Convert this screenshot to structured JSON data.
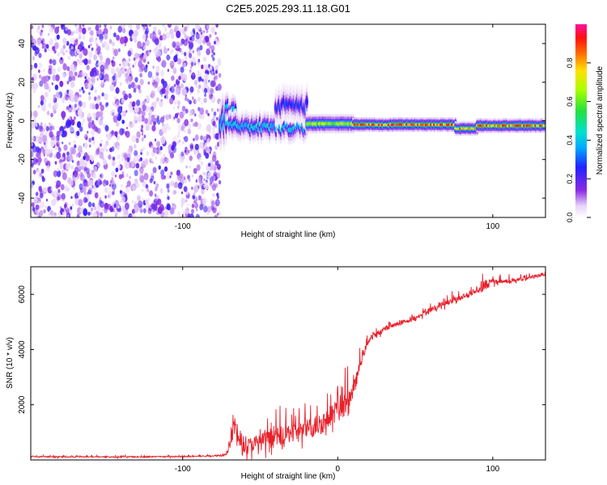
{
  "title": "C2E5.2025.293.11.18.G01",
  "colorbar": {
    "label": "Normalized spectral amplitude",
    "ticks": [
      "0.0",
      "0.2",
      "0.4",
      "0.6",
      "0.8"
    ],
    "range": [
      0,
      1
    ]
  },
  "chart_data": [
    {
      "type": "heatmap",
      "xlabel": "Height of straight line (km)",
      "ylabel": "Frequency (Hz)",
      "xlim": [
        -198,
        134
      ],
      "ylim": [
        -50,
        50
      ],
      "xticks": [
        -100,
        100
      ],
      "yticks": [
        -40,
        -20,
        0,
        20,
        40
      ],
      "grid": false,
      "noise_region": {
        "x": [
          -198,
          -76
        ],
        "y": [
          -50,
          50
        ],
        "amplitude_range": [
          0.05,
          0.25
        ]
      },
      "signal_track": [
        {
          "x": [
            -76,
            -72
          ],
          "y_center": -1,
          "y_halfwidth": 5,
          "peak_amplitude": 0.45
        },
        {
          "x": [
            -72,
            -66
          ],
          "y_center": 6,
          "y_halfwidth": 3,
          "peak_amplitude": 0.45
        },
        {
          "x": [
            -70,
            -20
          ],
          "y_center": -3,
          "y_halfwidth": 3,
          "peak_amplitude": 0.45
        },
        {
          "x": [
            -40,
            -20
          ],
          "y_center": 8,
          "y_halfwidth": 4,
          "peak_amplitude": 0.3
        },
        {
          "x": [
            -20,
            10
          ],
          "y_center": -1.5,
          "y_halfwidth": 2,
          "peak_amplitude": 0.75
        },
        {
          "x": [
            10,
            76
          ],
          "y_center": -2,
          "y_halfwidth": 1.5,
          "peak_amplitude": 0.95
        },
        {
          "x": [
            76,
            90
          ],
          "y_center": -4,
          "y_halfwidth": 1.5,
          "peak_amplitude": 0.9
        },
        {
          "x": [
            90,
            134
          ],
          "y_center": -2.5,
          "y_halfwidth": 1.5,
          "peak_amplitude": 0.95
        }
      ],
      "title": "C2E5.2025.293.11.18.G01"
    },
    {
      "type": "line",
      "xlabel": "Height of straight line (km)",
      "ylabel": "SNR (10 * v/v)",
      "xlim": [
        -198,
        134
      ],
      "ylim": [
        0,
        7000
      ],
      "xticks": [
        -100,
        0,
        100
      ],
      "yticks": [
        2000,
        4000,
        6000
      ],
      "grid": false,
      "series": [
        {
          "name": "SNR",
          "color": "#e8202a",
          "x": [
            -198,
            -150,
            -100,
            -80,
            -72,
            -68,
            -66,
            -64,
            -60,
            -50,
            -40,
            -30,
            -20,
            -10,
            0,
            5,
            10,
            15,
            20,
            30,
            40,
            50,
            60,
            70,
            80,
            90,
            93,
            100,
            110,
            120,
            134
          ],
          "mean": [
            120,
            110,
            120,
            150,
            180,
            900,
            1300,
            700,
            500,
            650,
            800,
            1000,
            1100,
            1350,
            1850,
            2000,
            2450,
            3600,
            4350,
            4750,
            4950,
            5150,
            5450,
            5700,
            5900,
            6150,
            6300,
            6450,
            6500,
            6550,
            6750
          ],
          "spread": [
            50,
            50,
            50,
            60,
            100,
            900,
            600,
            500,
            550,
            700,
            750,
            800,
            850,
            900,
            900,
            900,
            700,
            350,
            250,
            200,
            200,
            200,
            200,
            250,
            250,
            250,
            500,
            250,
            150,
            150,
            150
          ]
        }
      ]
    }
  ]
}
